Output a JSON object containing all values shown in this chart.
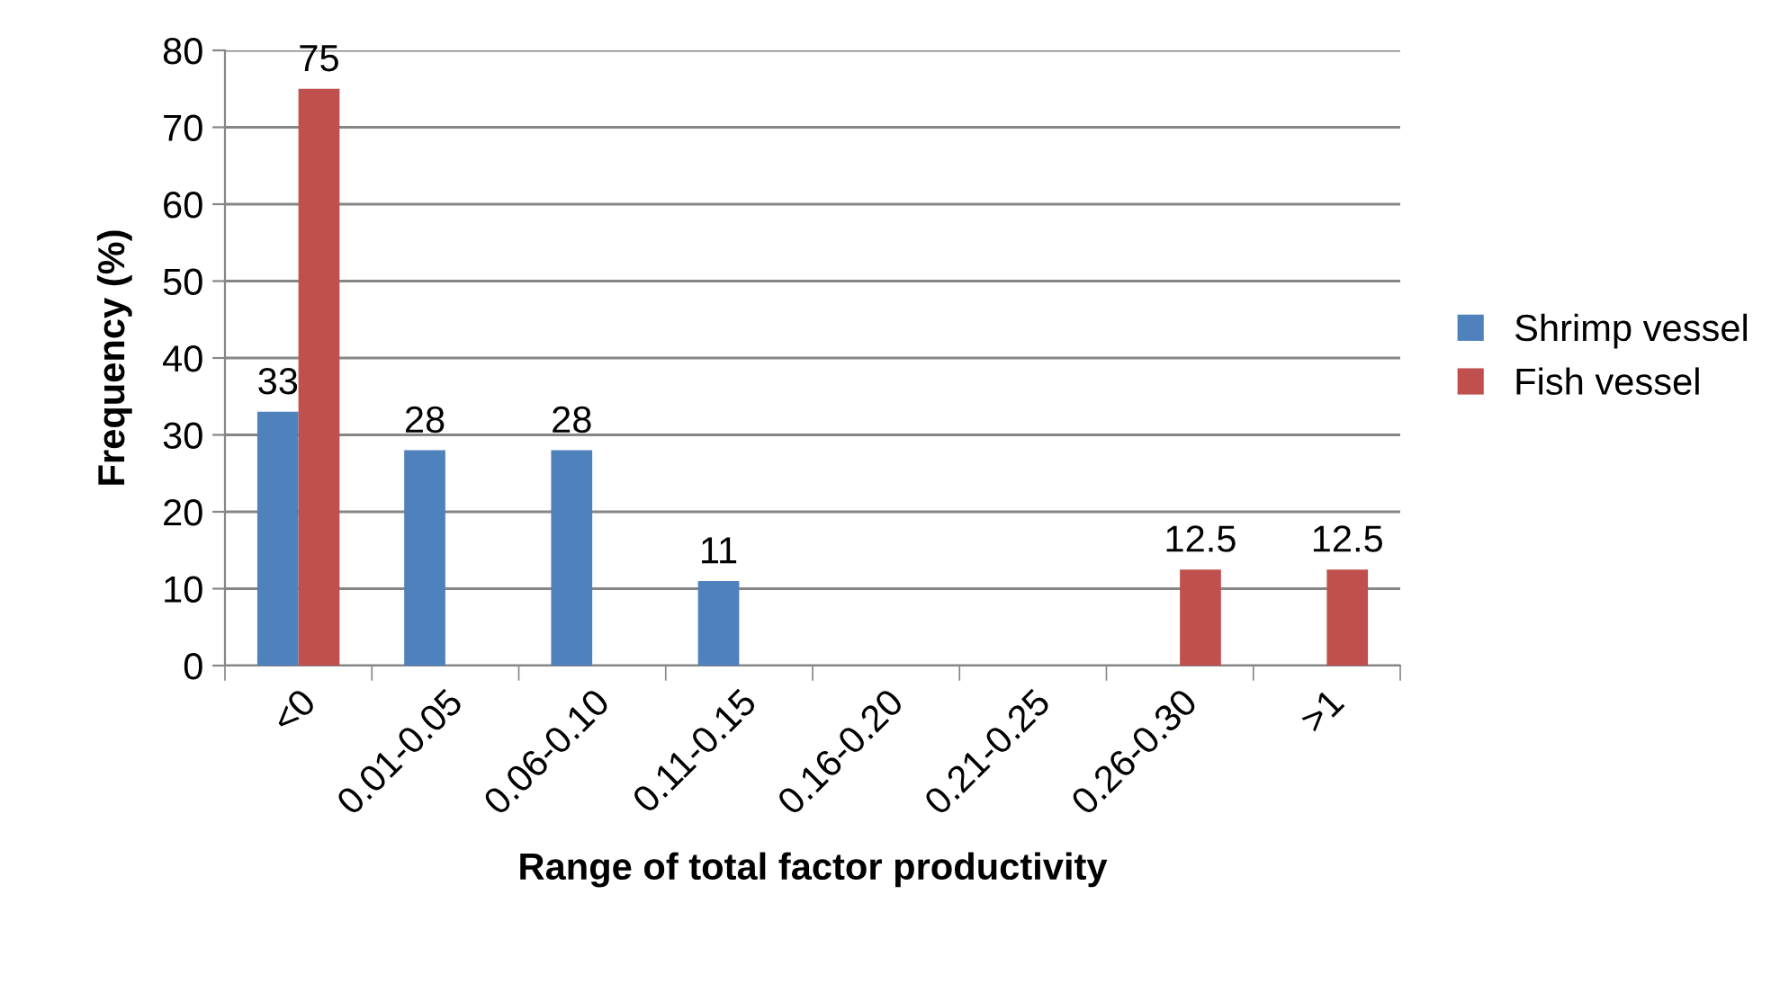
{
  "chart_data": {
    "type": "bar",
    "xlabel": "Range of total factor productivity",
    "ylabel": "Frequency (%)",
    "categories": [
      "<0",
      "0.01-0.05",
      "0.06-0.10",
      "0.11-0.15",
      "0.16-0.20",
      "0.21-0.25",
      "0.26-0.30",
      ">1"
    ],
    "series": [
      {
        "name": "Shrimp vessel",
        "color": "#4f81bd",
        "values": [
          33,
          28,
          28,
          11,
          null,
          null,
          null,
          null
        ]
      },
      {
        "name": "Fish vessel",
        "color": "#c0504d",
        "values": [
          75,
          null,
          null,
          null,
          null,
          null,
          12.5,
          12.5
        ]
      }
    ],
    "ylim": [
      0,
      80
    ],
    "yticks": [
      0,
      10,
      20,
      30,
      40,
      50,
      60,
      70,
      80
    ],
    "grid": "y",
    "legend": "right",
    "data_labels": true
  }
}
